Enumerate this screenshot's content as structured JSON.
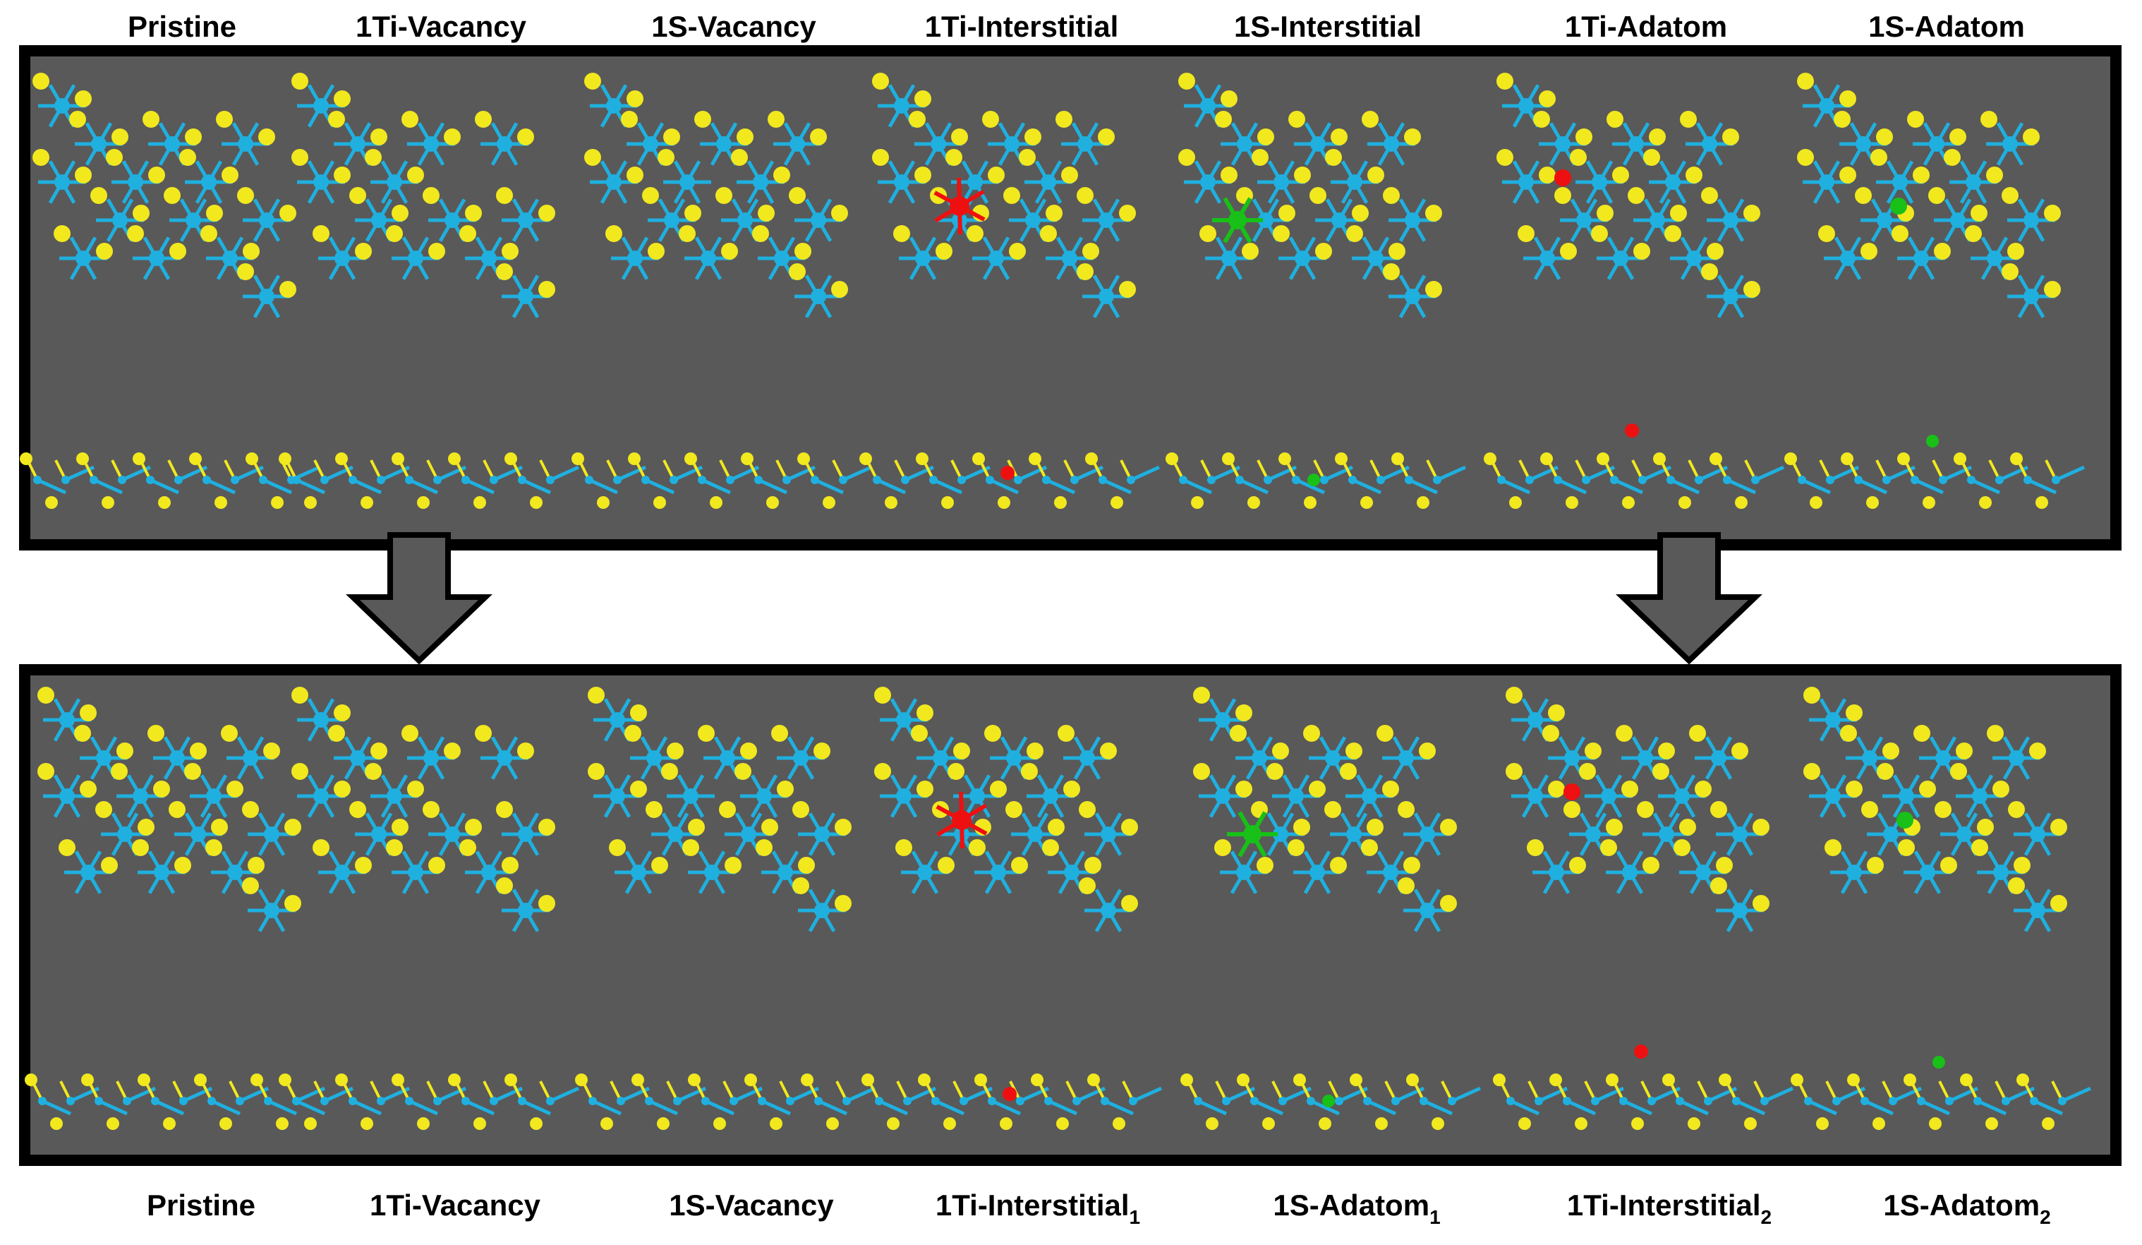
{
  "top_labels": [
    "Pristine",
    "1Ti-Vacancy",
    "1S-Vacancy",
    "1Ti-Interstitial",
    "1S-Interstitial",
    "1Ti-Adatom",
    "1S-Adatom"
  ],
  "bottom_labels": [
    {
      "text": "Pristine"
    },
    {
      "text": "1Ti-Vacancy"
    },
    {
      "text": "1S-Vacancy"
    },
    {
      "text": "1Ti-Interstitial",
      "sub": "1"
    },
    {
      "text": "1S-Adatom",
      "sub": "1"
    },
    {
      "text": "1Ti-Interstitial",
      "sub": "2"
    },
    {
      "text": "1S-Adatom",
      "sub": "2"
    }
  ]
}
